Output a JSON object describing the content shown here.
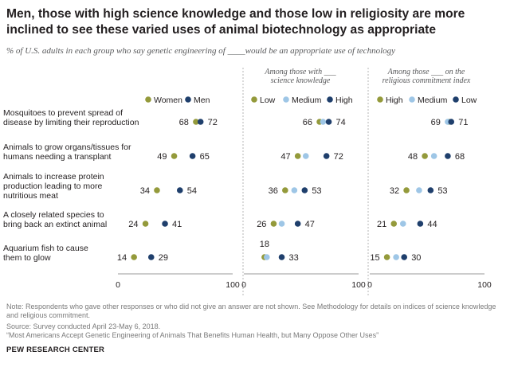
{
  "title": "Men, those with high science knowledge  and those low in religiosity are more inclined to see these varied uses of animal biotechnology as appropriate",
  "subtitle": "% of U.S. adults in each group who say genetic engineering of ____would be an appropriate use of technology",
  "note": "Note: Respondents who gave other responses or who did not give an answer are not shown. See Methodology for details on indices of science knowledge and religious commitment.",
  "source": "Source: Survey conducted April 23-May 6, 2018.",
  "report": "“Most Americans Accept Genetic Engineering of Animals That Benefits Human Health, but Many Oppose Other Uses”",
  "logo": "PEW RESEARCH CENTER",
  "colors": {
    "green": "#949a3b",
    "light_blue": "#9ec6e6",
    "dark_blue": "#1f3f6c",
    "axis": "#9a9a9a",
    "divider": "#b5b5b5"
  },
  "chart_data": {
    "type": "scatter",
    "categories": [
      "Mosquitoes to prevent spread of disease by limiting their reproduction",
      "Animals to grow organs/tissues for humans needing a transplant",
      "Animals to increase protein production leading to more nutritious meat",
      "A closely related species to bring back an extinct animal",
      "Aquarium fish to cause them to glow"
    ],
    "category_lines": [
      [
        "Mosquitoes to prevent spread of",
        "disease by limiting their reproduction"
      ],
      [
        "Animals to grow organs/tissues for",
        "humans needing a transplant"
      ],
      [
        "Animals to increase protein",
        "production leading to more",
        "nutritious meat"
      ],
      [
        "A closely related species to",
        "bring back an extinct animal"
      ],
      [
        "Aquarium fish to cause",
        "them to glow"
      ]
    ],
    "xlim": [
      0,
      100
    ],
    "tick_labels": [
      "0",
      "100"
    ],
    "panels": [
      {
        "title_lines": [],
        "series": [
          {
            "name": "Women",
            "color": "#949a3b",
            "values": [
              68,
              49,
              34,
              24,
              14
            ]
          },
          {
            "name": "Men",
            "color": "#1f3f6c",
            "values": [
              72,
              65,
              54,
              41,
              29
            ]
          }
        ]
      },
      {
        "title_lines": [
          "Among those with ___",
          "science knowledge"
        ],
        "series": [
          {
            "name": "Low",
            "color": "#949a3b",
            "values": [
              66,
              47,
              36,
              26,
              18
            ]
          },
          {
            "name": "Medium",
            "color": "#9ec6e6",
            "values": [
              69,
              54,
              44,
              33,
              20
            ]
          },
          {
            "name": "High",
            "color": "#1f3f6c",
            "values": [
              74,
              72,
              53,
              47,
              33
            ]
          }
        ],
        "labels": {
          "low": [
            66,
            47,
            36,
            26,
            18
          ],
          "high": [
            74,
            72,
            53,
            47,
            33
          ]
        }
      },
      {
        "title_lines": [
          "Among those ___ on the",
          "religious commitment index"
        ],
        "series": [
          {
            "name": "High",
            "color": "#949a3b",
            "values": [
              69,
              48,
              32,
              21,
              15
            ]
          },
          {
            "name": "Medium",
            "color": "#9ec6e6",
            "values": [
              68,
              56,
              43,
              29,
              23
            ]
          },
          {
            "name": "Low",
            "color": "#1f3f6c",
            "values": [
              71,
              68,
              53,
              44,
              30
            ]
          }
        ],
        "labels": {
          "low": [
            69,
            48,
            32,
            21,
            15
          ],
          "high": [
            71,
            68,
            53,
            44,
            30
          ]
        }
      }
    ]
  }
}
